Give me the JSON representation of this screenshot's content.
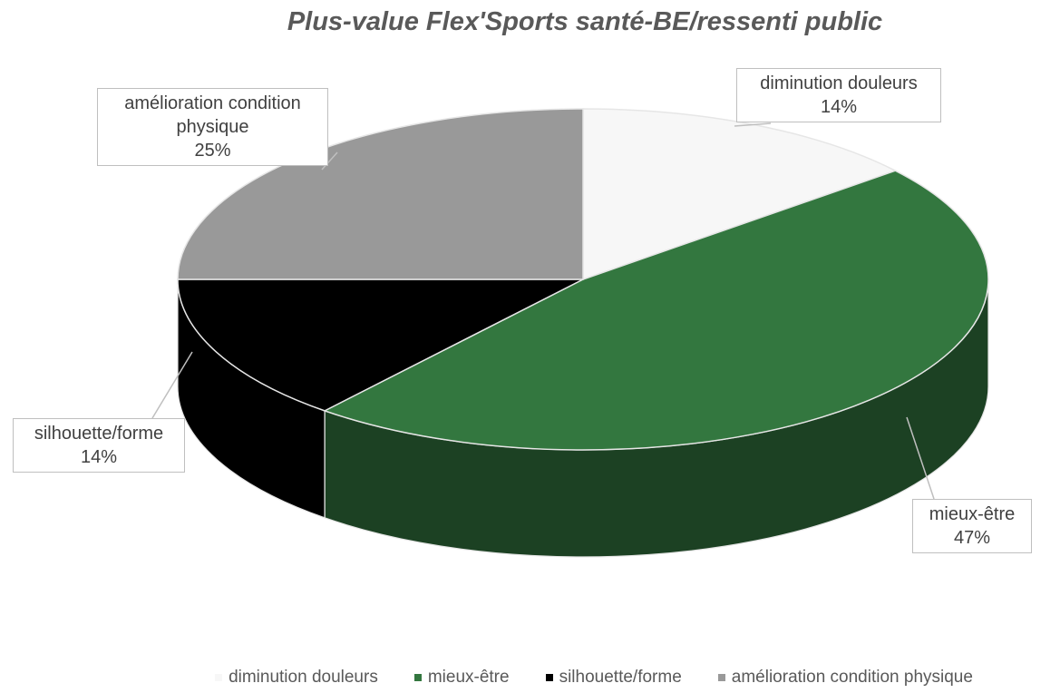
{
  "chart_data": {
    "type": "pie",
    "title": "Plus-value Flex'Sports santé-BE/ressenti public",
    "categories": [
      "diminution douleurs",
      "mieux-être",
      "silhouette/forme",
      "amélioration condition physique"
    ],
    "values": [
      14,
      47,
      14,
      25
    ],
    "value_labels": [
      "14%",
      "47%",
      "14%",
      "25%"
    ],
    "colors": [
      "#f7f7f7",
      "#33773f",
      "#000000",
      "#999999"
    ],
    "legend": "bottom"
  }
}
